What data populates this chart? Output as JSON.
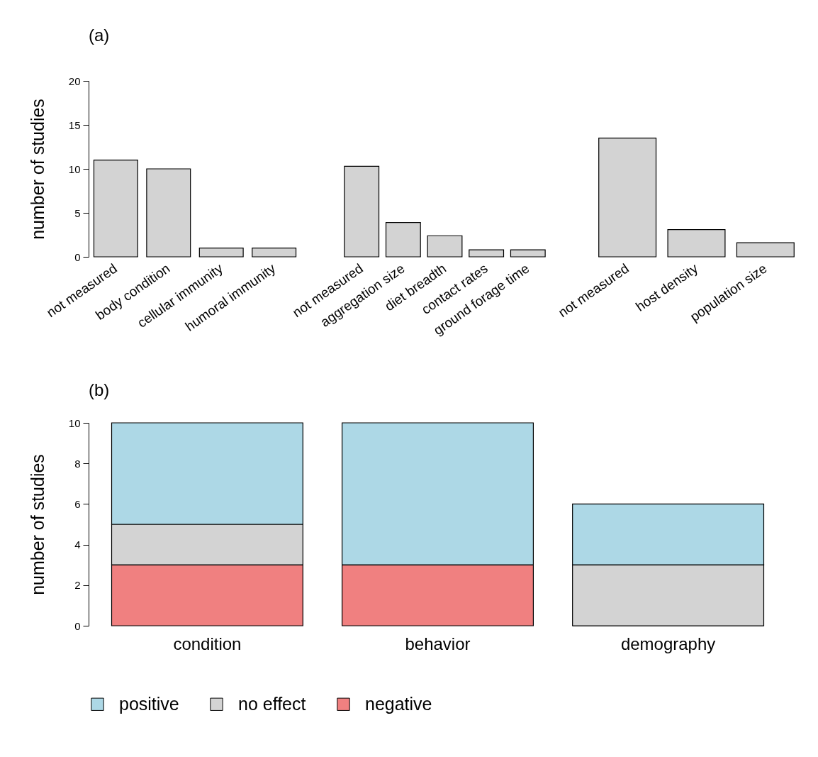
{
  "chart_data": [
    {
      "type": "bar",
      "title": "(a)",
      "ylabel": "number of studies",
      "categories": [
        "not measured",
        "body condition",
        "cellular immunity",
        "humoral immunity"
      ],
      "values": [
        11,
        10,
        1,
        1
      ],
      "color": "#d3d3d3",
      "ylim": [
        0,
        20
      ],
      "yticks": [
        0,
        5,
        10,
        15,
        20
      ]
    },
    {
      "type": "bar",
      "categories": [
        "not measured",
        "aggregation size",
        "diet breadth",
        "contact rates",
        "ground forage time"
      ],
      "values": [
        10.3,
        3.9,
        2.4,
        0.8,
        0.8
      ],
      "color": "#d3d3d3",
      "ylim": [
        0,
        20
      ],
      "yticks": [
        0,
        5,
        10,
        15,
        20
      ],
      "tick_labels": "x"
    },
    {
      "type": "bar",
      "categories": [
        "not measured",
        "host density",
        "population size"
      ],
      "values": [
        13.5,
        3.1,
        1.6
      ],
      "color": "#d3d3d3",
      "ylim": [
        0,
        20
      ],
      "yticks": [
        0,
        5,
        10,
        15,
        20
      ],
      "tick_labels": "x"
    },
    {
      "type": "bar",
      "title": "(b)",
      "ylabel": "number of studies",
      "stacked": true,
      "legend": "bottom",
      "categories": [
        "condition",
        "behavior",
        "demography"
      ],
      "ylim": [
        0,
        10
      ],
      "yticks": [
        0,
        2,
        4,
        6,
        8,
        10
      ],
      "series": [
        {
          "name": "negative",
          "color": "#f08080",
          "values": [
            3,
            3,
            0
          ]
        },
        {
          "name": "no effect",
          "color": "#d3d3d3",
          "values": [
            2,
            0,
            3
          ]
        },
        {
          "name": "positive",
          "color": "#add8e6",
          "values": [
            5,
            7,
            3
          ]
        }
      ]
    }
  ]
}
